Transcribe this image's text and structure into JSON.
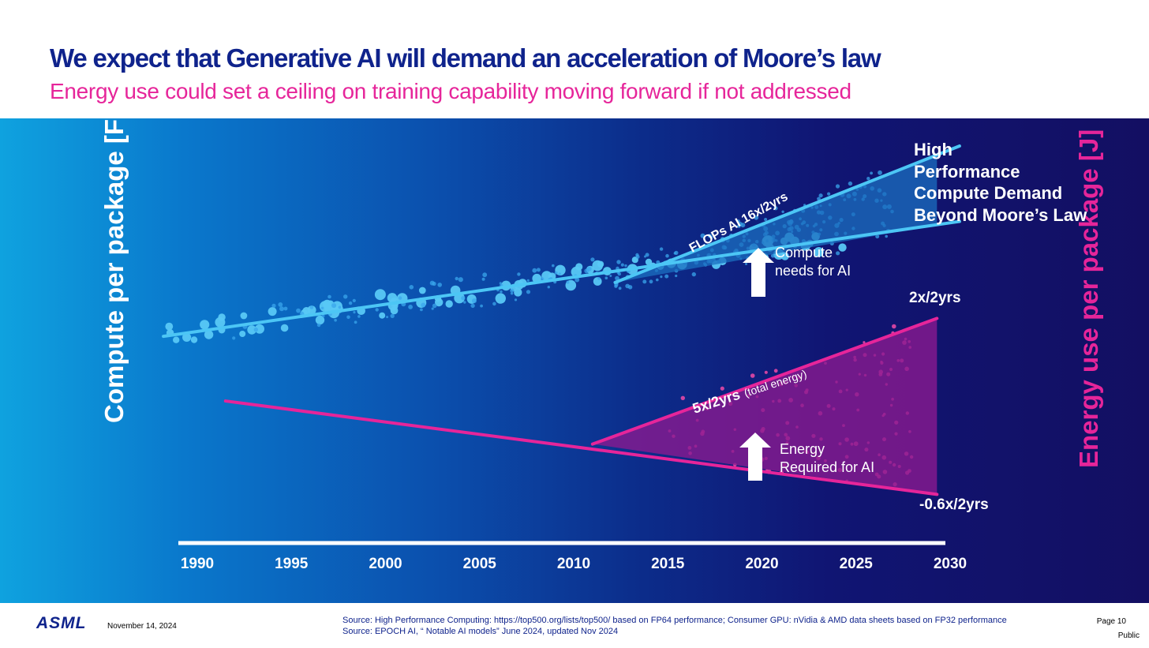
{
  "header": {
    "title": "We expect that Generative AI will demand an acceleration of Moore’s law",
    "subtitle": "Energy use could set a ceiling on training capability moving forward if not addressed"
  },
  "colors": {
    "compute": "#4cc6f5",
    "compute_fill": "#1b6fc0",
    "energy": "#e6259a",
    "energy_fill": "#8a1a90",
    "title": "#0f238c",
    "subtitle": "#e6259a"
  },
  "chart_data": {
    "type": "scatter",
    "title": "We expect that Generative AI will demand an acceleration of Moore’s law",
    "x_ticks": [
      "1990",
      "1995",
      "2000",
      "2005",
      "2010",
      "2015",
      "2020",
      "2025",
      "2030"
    ],
    "xlim": [
      1988,
      2031
    ],
    "ylabel_left": "Compute per package [FLOPs]",
    "ylabel_right": "Energy use per package [J]",
    "y_units": "relative log scale (0-100)",
    "ylim": [
      0,
      100
    ],
    "series": [
      {
        "name": "2x/2yrs",
        "kind": "trend",
        "x": [
          1988.2,
          2030.5
        ],
        "y": [
          47,
          79
        ]
      },
      {
        "name": "FLOPs AI 16x/2yrs",
        "kind": "trend",
        "x": [
          2012.2,
          2030.5
        ],
        "y": [
          62,
          100
        ]
      },
      {
        "name": "-0.6x/2yrs",
        "kind": "trend",
        "x": [
          1991.5,
          2029.3
        ],
        "y": [
          29,
          3
        ]
      },
      {
        "name": "5x/2yrs (total energy)",
        "kind": "trend",
        "x": [
          2011.0,
          2029.3
        ],
        "y": [
          17,
          52
        ]
      }
    ],
    "regions": [
      {
        "name": "Compute needs for AI",
        "color": "#1b6fc0"
      },
      {
        "name": "Energy Required for AI",
        "color": "#8a1a90"
      }
    ],
    "annotations": {
      "hpc_lines": [
        "High",
        "Performance",
        "Compute Demand",
        "Beyond Moore’s Law"
      ],
      "compute_rate": "2x/2yrs",
      "flops_ai": "FLOPs AI 16x/2yrs",
      "compute_needs": [
        "Compute",
        "needs for AI"
      ],
      "energy_rate_main": "5x/2yrs",
      "energy_rate_note": "(total energy)",
      "energy_required": [
        "Energy",
        "Required for AI"
      ],
      "energy_trend": "-0.6x/2yrs"
    }
  },
  "footer": {
    "logo": "ASML",
    "date": "November 14, 2024",
    "source_1": "Source: High Performance Computing: https://top500.org/lists/top500/ based on FP64 performance; Consumer GPU: nVidia & AMD data sheets based on FP32 performance",
    "source_2": "Source: EPOCH AI, “ Notable AI models” June 2024, updated Nov 2024",
    "page": "Page 10",
    "classification": "Public"
  }
}
